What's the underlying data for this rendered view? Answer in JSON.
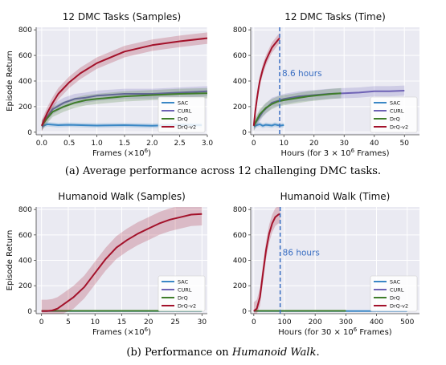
{
  "captions": {
    "a": "(a) Average performance across 12 challenging DMC tasks.",
    "b_prefix": "(b) Performance on ",
    "b_italic": "Humanoid Walk",
    "b_suffix": "."
  },
  "legend_labels": [
    "SAC",
    "CURL",
    "DrQ",
    "DrQ-v2"
  ],
  "colors": {
    "SAC": "#3a87c5",
    "CURL": "#6e62b5",
    "DrQ": "#3f7d2a",
    "DrQ-v2": "#a3112a",
    "vline": "#3a6ec2",
    "grid": "#ffffff",
    "axes_bg": "#eaeaf2"
  },
  "chart_data": [
    {
      "type": "line",
      "title": "12 DMC Tasks (Samples)",
      "xlabel_prefix": "Frames (×10",
      "xlabel_sup": "6",
      "xlabel_suffix": ")",
      "ylabel": "Episode Return",
      "xlim": [
        -0.1,
        3.0
      ],
      "ylim": [
        -20,
        820
      ],
      "xticks": [
        0.0,
        0.5,
        1.0,
        1.5,
        2.0,
        2.5,
        3.0
      ],
      "xtick_labels": [
        "0.0",
        "0.5",
        "1.0",
        "1.5",
        "2.0",
        "2.5",
        "3.0"
      ],
      "yticks": [
        0,
        200,
        400,
        600,
        800
      ],
      "ytick_labels": [
        "0",
        "200",
        "400",
        "600",
        "800"
      ],
      "legend": "bottom-right",
      "series": [
        {
          "name": "SAC",
          "x": [
            0,
            0.1,
            0.3,
            0.5,
            1.0,
            1.5,
            2.0,
            2.5,
            2.9
          ],
          "y": [
            45,
            62,
            55,
            58,
            52,
            55,
            50,
            58,
            55
          ],
          "spread": 18
        },
        {
          "name": "CURL",
          "x": [
            0,
            0.1,
            0.2,
            0.4,
            0.6,
            0.8,
            1.0,
            1.5,
            2.0,
            2.5,
            3.0
          ],
          "y": [
            50,
            120,
            180,
            230,
            260,
            270,
            285,
            300,
            300,
            310,
            320
          ],
          "spread": 40
        },
        {
          "name": "DrQ",
          "x": [
            0,
            0.1,
            0.2,
            0.4,
            0.6,
            0.8,
            1.0,
            1.5,
            2.0,
            2.5,
            3.0
          ],
          "y": [
            50,
            110,
            160,
            200,
            230,
            250,
            260,
            280,
            290,
            300,
            305
          ],
          "spread": 40
        },
        {
          "name": "DrQ-v2",
          "x": [
            0,
            0.1,
            0.2,
            0.3,
            0.5,
            0.7,
            1.0,
            1.5,
            2.0,
            2.5,
            3.0
          ],
          "y": [
            50,
            150,
            230,
            300,
            390,
            460,
            540,
            630,
            680,
            710,
            735
          ],
          "spread": 45
        }
      ]
    },
    {
      "type": "line",
      "title": "12 DMC Tasks (Time)",
      "xlabel_prefix": "Hours (for 3 × 10",
      "xlabel_sup": "6",
      "xlabel_suffix": " Frames)",
      "ylabel": "",
      "xlim": [
        -1,
        55
      ],
      "ylim": [
        -20,
        820
      ],
      "xticks": [
        0,
        10,
        20,
        30,
        40,
        50
      ],
      "xtick_labels": [
        "0",
        "10",
        "20",
        "30",
        "40",
        "50"
      ],
      "yticks": [
        0,
        200,
        400,
        600,
        800
      ],
      "ytick_labels": [
        "0",
        "200",
        "400",
        "600",
        "800"
      ],
      "legend": "bottom-right",
      "vline": 8.6,
      "annotation": "8.6 hours",
      "series": [
        {
          "name": "SAC",
          "x": [
            0,
            1,
            2,
            3,
            4,
            5,
            6,
            7,
            8,
            9,
            10
          ],
          "y": [
            45,
            55,
            62,
            50,
            58,
            55,
            52,
            60,
            55,
            52,
            56
          ],
          "spread": 18
        },
        {
          "name": "CURL",
          "x": [
            0,
            3,
            6,
            10,
            15,
            20,
            25,
            30,
            35,
            40,
            45,
            50
          ],
          "y": [
            50,
            160,
            230,
            260,
            280,
            290,
            300,
            305,
            310,
            320,
            320,
            325
          ],
          "spread": 40
        },
        {
          "name": "DrQ",
          "x": [
            0,
            2,
            4,
            6,
            8,
            10,
            14,
            18,
            22,
            26,
            29
          ],
          "y": [
            50,
            140,
            190,
            220,
            240,
            250,
            265,
            280,
            290,
            300,
            305
          ],
          "spread": 40
        },
        {
          "name": "DrQ-v2",
          "x": [
            0,
            0.5,
            1,
            1.5,
            2,
            3,
            4,
            5,
            6,
            7,
            8,
            8.6
          ],
          "y": [
            50,
            160,
            250,
            330,
            400,
            490,
            560,
            610,
            660,
            690,
            720,
            735
          ],
          "spread": 40
        }
      ]
    },
    {
      "type": "line",
      "title": "Humanoid Walk (Samples)",
      "xlabel_prefix": "Frames (×10",
      "xlabel_sup": "6",
      "xlabel_suffix": ")",
      "ylabel": "Episode Return",
      "xlim": [
        -1,
        31
      ],
      "ylim": [
        -20,
        820
      ],
      "xticks": [
        0,
        5,
        10,
        15,
        20,
        25,
        30
      ],
      "xtick_labels": [
        "0",
        "5",
        "10",
        "15",
        "20",
        "25",
        "30"
      ],
      "yticks": [
        0,
        200,
        400,
        600,
        800
      ],
      "ytick_labels": [
        "0",
        "200",
        "400",
        "600",
        "800"
      ],
      "legend": "bottom-right",
      "series": [
        {
          "name": "SAC",
          "x": [
            0,
            30
          ],
          "y": [
            1,
            1
          ],
          "spread": 2
        },
        {
          "name": "CURL",
          "x": [
            0,
            30
          ],
          "y": [
            2,
            2
          ],
          "spread": 2
        },
        {
          "name": "DrQ",
          "x": [
            0,
            30
          ],
          "y": [
            2,
            2
          ],
          "spread": 2
        },
        {
          "name": "DrQ-v2",
          "x": [
            0,
            1,
            2,
            3,
            4,
            6,
            8,
            10,
            12,
            14,
            16,
            18,
            20,
            22,
            24,
            26,
            28,
            30
          ],
          "y": [
            0,
            0,
            5,
            20,
            50,
            110,
            190,
            300,
            410,
            500,
            560,
            610,
            650,
            690,
            720,
            740,
            760,
            765
          ],
          "spread": 90
        }
      ]
    },
    {
      "type": "line",
      "title": "Humanoid Walk (Time)",
      "xlabel_prefix": "Hours (for 30 × 10",
      "xlabel_sup": "6",
      "xlabel_suffix": " Frames)",
      "ylabel": "",
      "xlim": [
        -10,
        540
      ],
      "ylim": [
        -20,
        820
      ],
      "xticks": [
        0,
        100,
        200,
        300,
        400,
        500
      ],
      "xtick_labels": [
        "0",
        "100",
        "200",
        "300",
        "400",
        "500"
      ],
      "yticks": [
        0,
        200,
        400,
        600,
        800
      ],
      "ytick_labels": [
        "0",
        "200",
        "400",
        "600",
        "800"
      ],
      "legend": "bottom-right",
      "vline": 86,
      "annotation": "86 hours",
      "series": [
        {
          "name": "SAC",
          "x": [
            0,
            500
          ],
          "y": [
            1,
            1
          ],
          "spread": 2
        },
        {
          "name": "CURL",
          "x": [
            0,
            300
          ],
          "y": [
            2,
            2
          ],
          "spread": 2
        },
        {
          "name": "DrQ",
          "x": [
            0,
            300
          ],
          "y": [
            2,
            2
          ],
          "spread": 2
        },
        {
          "name": "DrQ-v2",
          "x": [
            0,
            10,
            20,
            30,
            40,
            50,
            60,
            70,
            80,
            86
          ],
          "y": [
            0,
            20,
            110,
            300,
            480,
            610,
            690,
            740,
            760,
            765
          ],
          "spread": 70
        }
      ]
    }
  ]
}
